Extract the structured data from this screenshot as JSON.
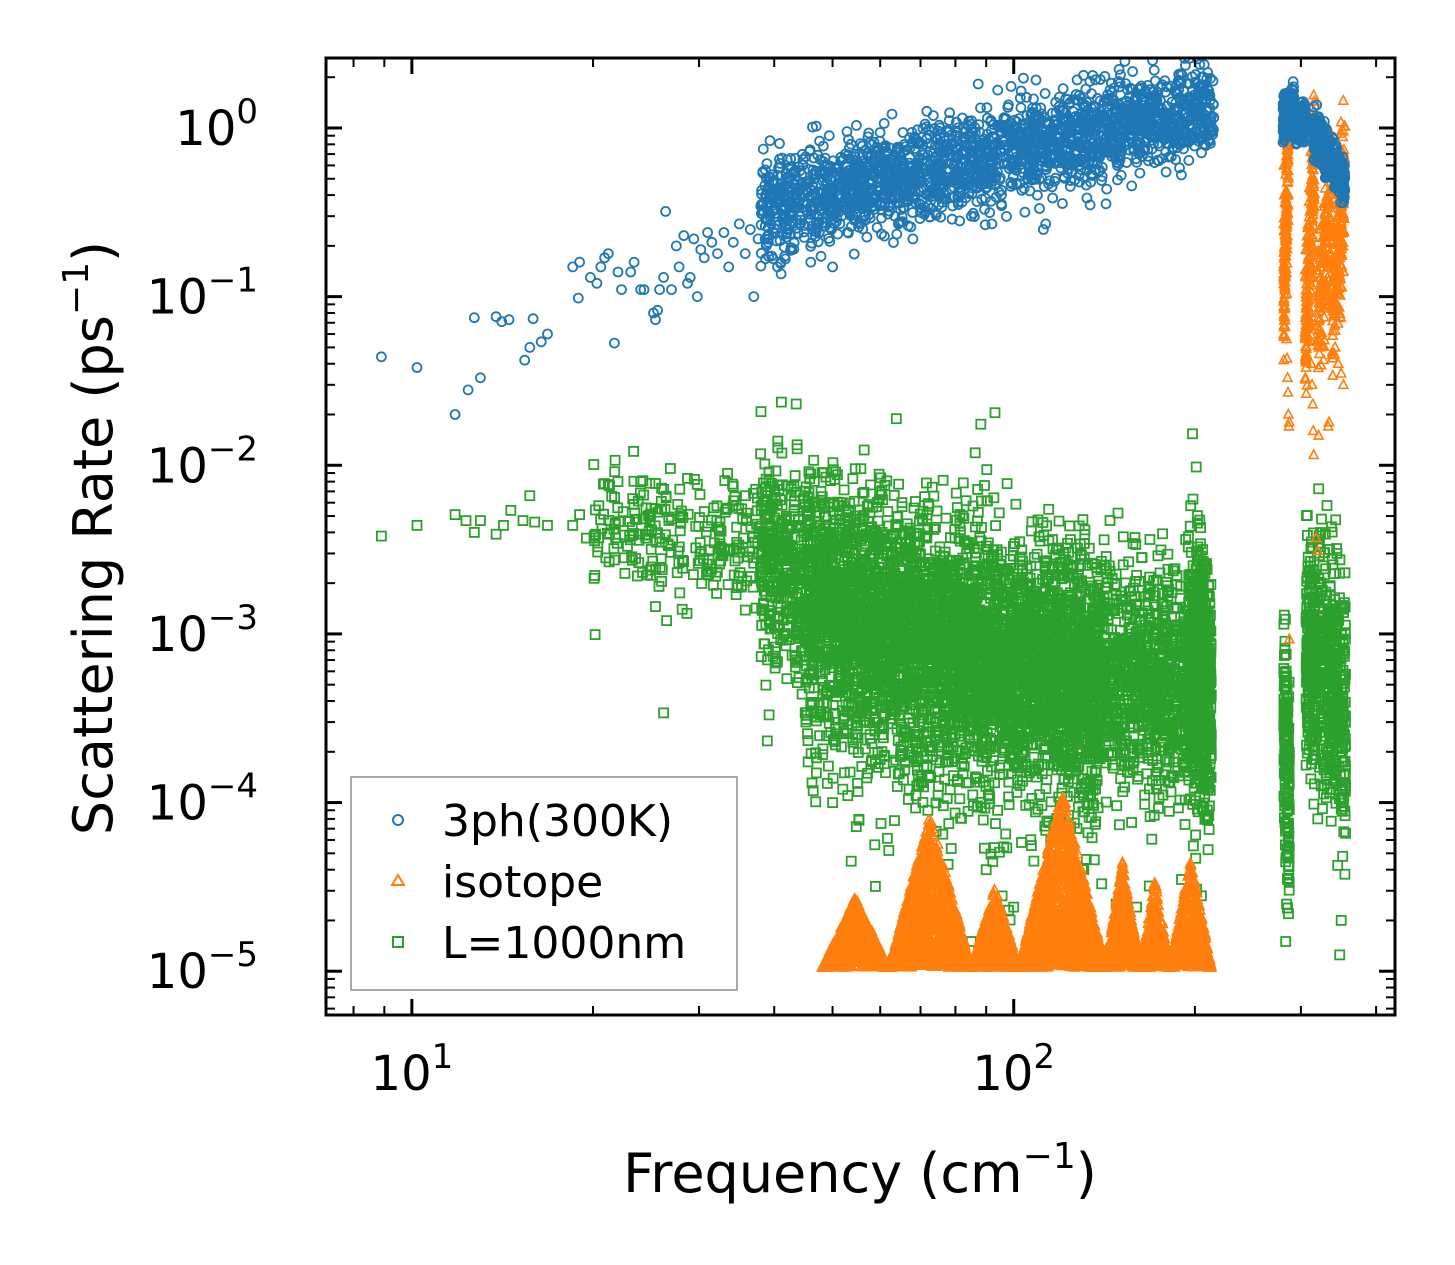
{
  "chart_data": {
    "type": "scatter",
    "title": "",
    "xlabel": "Frequency (cm",
    "xlabel_sup": "−1",
    "xlabel_end": ")",
    "ylabel": "Scattering Rate (ps",
    "ylabel_sup": "−1",
    "ylabel_end": ")",
    "xscale": "log",
    "yscale": "log",
    "xlim": [
      7.2,
      430
    ],
    "ylim": [
      5.5e-06,
      2.6
    ],
    "x_ticks": [
      {
        "value": 10,
        "base": "10",
        "exp": "1"
      },
      {
        "value": 100,
        "base": "10",
        "exp": "2"
      }
    ],
    "y_ticks": [
      {
        "value": 1,
        "base": "10",
        "exp": "0"
      },
      {
        "value": 0.1,
        "base": "10",
        "exp": "−1"
      },
      {
        "value": 0.01,
        "base": "10",
        "exp": "−2"
      },
      {
        "value": 0.001,
        "base": "10",
        "exp": "−3"
      },
      {
        "value": 0.0001,
        "base": "10",
        "exp": "−4"
      },
      {
        "value": 1e-05,
        "base": "10",
        "exp": "−5"
      }
    ],
    "legend_position": "lower-left",
    "series": [
      {
        "name": "3ph(300K)",
        "color": "#1f77b4",
        "marker": "circle",
        "points": [
          [
            8.9,
            0.044
          ],
          [
            10.2,
            0.038
          ],
          [
            11.8,
            0.02
          ],
          [
            12.4,
            0.028
          ],
          [
            12.7,
            0.075
          ],
          [
            13.0,
            0.033
          ],
          [
            13.8,
            0.076
          ],
          [
            14.1,
            0.071
          ],
          [
            14.5,
            0.073
          ],
          [
            15.4,
            0.042
          ],
          [
            15.7,
            0.05
          ],
          [
            15.9,
            0.074
          ],
          [
            16.4,
            0.054
          ],
          [
            16.8,
            0.06
          ],
          [
            18.5,
            0.15
          ],
          [
            18.9,
            0.098
          ],
          [
            19.0,
            0.16
          ],
          [
            19.8,
            0.13
          ],
          [
            20.3,
            0.12
          ],
          [
            20.6,
            0.15
          ],
          [
            20.9,
            0.17
          ],
          [
            21.2,
            0.18
          ],
          [
            21.7,
            0.053
          ],
          [
            22.0,
            0.14
          ],
          [
            22.3,
            0.11
          ],
          [
            23.1,
            0.14
          ],
          [
            23.4,
            0.16
          ],
          [
            24.0,
            0.11
          ],
          [
            24.3,
            0.11
          ],
          [
            25.2,
            0.08
          ],
          [
            25.4,
            0.073
          ],
          [
            25.6,
            0.083
          ],
          [
            25.8,
            0.11
          ],
          [
            26.2,
            0.13
          ],
          [
            26.4,
            0.32
          ],
          [
            27.0,
            0.11
          ],
          [
            27.5,
            0.2
          ],
          [
            27.8,
            0.15
          ],
          [
            28.3,
            0.23
          ],
          [
            28.7,
            0.12
          ],
          [
            29.0,
            0.13
          ],
          [
            29.4,
            0.22
          ],
          [
            29.8,
            0.1
          ],
          [
            30.2,
            0.19
          ],
          [
            30.6,
            0.17
          ],
          [
            31.0,
            0.24
          ],
          [
            31.5,
            0.21
          ],
          [
            32.2,
            0.18
          ],
          [
            33.0,
            0.24
          ],
          [
            33.6,
            0.15
          ],
          [
            34.2,
            0.21
          ],
          [
            35.0,
            0.27
          ],
          [
            35.8,
            0.18
          ],
          [
            36.5,
            0.25
          ],
          [
            37.0,
            0.1
          ],
          [
            37.6,
            0.22
          ],
          [
            38.2,
            0.31
          ],
          [
            38.8,
            0.2
          ],
          [
            39.2,
            0.48
          ],
          [
            40.0,
            0.49
          ],
          [
            40.5,
            0.15
          ],
          [
            41.0,
            0.16
          ],
          [
            46.0,
            0.16
          ],
          [
            50.0,
            0.15
          ],
          [
            55.0,
            0.62
          ],
          [
            58.0,
            0.7
          ],
          [
            62.0,
            0.62
          ],
          [
            68.0,
            0.22
          ],
          [
            75.0,
            0.35
          ],
          [
            85.0,
            0.3
          ],
          [
            92.0,
            0.27
          ],
          [
            103.0,
            0.9
          ],
          [
            112.0,
            0.25
          ],
          [
            113.0,
            0.27
          ],
          [
            118.0,
            0.8
          ],
          [
            150.0,
            0.72
          ],
          [
            165.0,
            0.75
          ],
          [
            300.0,
            1.42
          ],
          [
            304.0,
            1.1
          ],
          [
            317.0,
            0.93
          ],
          [
            325.0,
            0.78
          ],
          [
            340.0,
            0.6
          ],
          [
            345.0,
            0.5
          ]
        ],
        "bands": [
          {
            "x0": 38.0,
            "x1": 215.0,
            "y0": 0.34,
            "y1": 1.32,
            "jitter": 0.14,
            "n": 2200
          },
          {
            "x0": 280.0,
            "x1": 292.0,
            "y0": 1.12,
            "y1": 1.4,
            "jitter": 0.06,
            "n": 220
          },
          {
            "x0": 293.0,
            "x1": 305.0,
            "y0": 1.0,
            "y1": 1.1,
            "jitter": 0.05,
            "n": 150
          },
          {
            "x0": 315.0,
            "x1": 337.0,
            "y0": 0.95,
            "y1": 0.65,
            "jitter": 0.07,
            "n": 260
          },
          {
            "x0": 337.0,
            "x1": 355.0,
            "y0": 0.65,
            "y1": 0.45,
            "jitter": 0.06,
            "n": 200
          }
        ]
      },
      {
        "name": "isotope",
        "color": "#ff7f0e",
        "marker": "triangle",
        "points": [
          [
            280.5,
            0.85
          ],
          [
            281.0,
            0.6
          ],
          [
            281.5,
            0.4
          ],
          [
            282.0,
            0.25
          ],
          [
            282.5,
            0.2
          ],
          [
            283.0,
            0.14
          ],
          [
            284.0,
            0.056
          ],
          [
            284.5,
            0.043
          ],
          [
            285.0,
            0.033
          ],
          [
            285.5,
            0.027
          ],
          [
            286.0,
            0.02
          ],
          [
            286.5,
            0.017
          ],
          [
            287.0,
            0.018
          ],
          [
            310.0,
            0.08
          ],
          [
            311.0,
            0.055
          ],
          [
            312.0,
            0.04
          ],
          [
            313.0,
            0.03
          ],
          [
            314.0,
            0.023
          ],
          [
            314.5,
            0.016
          ],
          [
            315.0,
            0.0115
          ],
          [
            318.0,
            0.0037
          ],
          [
            320.0,
            0.0031
          ],
          [
            321.0,
            0.015
          ],
          [
            333.0,
            0.017
          ],
          [
            334.0,
            0.018
          ],
          [
            338.0,
            0.045
          ],
          [
            342.0,
            0.05
          ],
          [
            346.0,
            0.04
          ],
          [
            350.0,
            0.035
          ],
          [
            353.0,
            0.03
          ],
          [
            287.0,
            0.00093
          ]
        ],
        "bands": [
          {
            "x0": 281.0,
            "x1": 286.0,
            "y0": 0.08,
            "y1": 0.9,
            "jitter": 0.2,
            "n": 170
          },
          {
            "x0": 305.0,
            "x1": 316.0,
            "y0": 0.06,
            "y1": 0.55,
            "jitter": 0.22,
            "n": 200
          },
          {
            "x0": 320.0,
            "x1": 338.0,
            "y0": 0.07,
            "y1": 0.45,
            "jitter": 0.22,
            "n": 160
          },
          {
            "x0": 338.0,
            "x1": 355.0,
            "y0": 0.08,
            "y1": 0.55,
            "jitter": 0.22,
            "n": 200
          }
        ],
        "peaks": [
          {
            "x0": 48.0,
            "x1": 62.0,
            "peak": 2.8e-05,
            "n": 700
          },
          {
            "x0": 62.0,
            "x1": 85.0,
            "peak": 8.5e-05,
            "n": 1400
          },
          {
            "x0": 85.0,
            "x1": 102.0,
            "peak": 3.2e-05,
            "n": 700
          },
          {
            "x0": 102.0,
            "x1": 142.0,
            "peak": 0.00012,
            "n": 1800
          },
          {
            "x0": 142.0,
            "x1": 162.0,
            "peak": 4.5e-05,
            "n": 600
          },
          {
            "x0": 162.0,
            "x1": 182.0,
            "peak": 3.5e-05,
            "n": 450
          },
          {
            "x0": 182.0,
            "x1": 213.0,
            "peak": 4.8e-05,
            "n": 600
          }
        ]
      },
      {
        "name": "L=1000nm",
        "color": "#2ca02c",
        "marker": "square",
        "points": [
          [
            8.9,
            0.0038
          ],
          [
            10.2,
            0.0044
          ],
          [
            11.8,
            0.0051
          ],
          [
            12.3,
            0.0047
          ],
          [
            12.7,
            0.004
          ],
          [
            13.0,
            0.0047
          ],
          [
            13.8,
            0.0039
          ],
          [
            14.2,
            0.0044
          ],
          [
            14.6,
            0.0054
          ],
          [
            15.3,
            0.0047
          ],
          [
            15.7,
            0.0066
          ],
          [
            16.0,
            0.0046
          ],
          [
            16.8,
            0.0044
          ],
          [
            18.5,
            0.0044
          ],
          [
            19.0,
            0.0051
          ],
          [
            19.5,
            0.0037
          ],
          [
            20.2,
            0.0039
          ],
          [
            20.7,
            0.0042
          ],
          [
            21.3,
            0.0039
          ],
          [
            22.0,
            0.008
          ],
          [
            23.0,
            0.0038
          ],
          [
            24.2,
            0.0081
          ],
          [
            25.4,
            0.0078
          ],
          [
            26.0,
            0.0055
          ],
          [
            26.5,
            0.0012
          ],
          [
            26.2,
            0.00034
          ],
          [
            27.0,
            0.0048
          ],
          [
            28.2,
            0.0049
          ],
          [
            29.8,
            0.0077
          ],
          [
            30.5,
            0.0028
          ],
          [
            32.0,
            0.0022
          ],
          [
            33.5,
            0.0031
          ],
          [
            34.2,
            0.0075
          ],
          [
            36.0,
            0.0052
          ],
          [
            37.5,
            0.0064
          ],
          [
            39.0,
            0.0049
          ],
          [
            40.5,
            0.0076
          ],
          [
            42.0,
            0.0021
          ],
          [
            42.7,
            0.0072
          ],
          [
            44.0,
            0.00055
          ],
          [
            44.5,
            0.00044
          ],
          [
            45.5,
            0.0064
          ],
          [
            46.0,
            0.00035
          ],
          [
            47.0,
            0.00015
          ],
          [
            49.0,
            0.00013
          ],
          [
            50.0,
            0.0001
          ],
          [
            52.0,
            0.00012
          ],
          [
            53.0,
            0.00011
          ],
          [
            55.0,
            0.00013
          ],
          [
            57.0,
            0.00014
          ],
          [
            60.0,
            0.00018
          ],
          [
            62.0,
            5.2e-05
          ],
          [
            67.0,
            0.00012
          ],
          [
            72.0,
            9e-05
          ],
          [
            78.0,
            7.5e-05
          ],
          [
            82.0,
            1.3e-05
          ],
          [
            85.0,
            1.5e-05
          ],
          [
            90.0,
            4e-05
          ],
          [
            94.0,
            9e-05
          ],
          [
            98.0,
            2.3e-05
          ],
          [
            100.0,
            2.4e-05
          ],
          [
            103.0,
            5.8e-05
          ],
          [
            108.0,
            4.5e-05
          ],
          [
            118.0,
            1.1e-05
          ],
          [
            120.0,
            1.2e-05
          ],
          [
            124.0,
            2.6e-05
          ],
          [
            132.0,
            4.6e-05
          ],
          [
            140.0,
            3.3e-05
          ],
          [
            148.0,
            2.5e-05
          ],
          [
            152.0,
            1.6e-05
          ],
          [
            160.0,
            2.4e-05
          ],
          [
            168.0,
            3.2e-05
          ],
          [
            175.0,
            1.1e-05
          ],
          [
            190.0,
            3.5e-05
          ],
          [
            205.0,
            2.8e-05
          ],
          [
            283.0,
            1.5e-05
          ],
          [
            284.0,
            2.5e-05
          ],
          [
            285.0,
            3.5e-05
          ],
          [
            320.0,
            8e-05
          ],
          [
            348.0,
            1.25e-05
          ],
          [
            350.0,
            2e-05
          ],
          [
            352.0,
            4.8e-05
          ],
          [
            331.0,
            0.00015
          ],
          [
            122.0,
            0.00068
          ],
          [
            175.0,
            0.0023
          ],
          [
            148.0,
            0.0017
          ]
        ],
        "bands": [
          {
            "x0": 20.0,
            "x1": 40.0,
            "y0": 0.0042,
            "y1": 0.0035,
            "jitter": 0.18,
            "n": 260
          },
          {
            "x0": 38.0,
            "x1": 80.0,
            "y0": 0.0028,
            "y1": 0.00085,
            "jitter": 0.32,
            "n": 1400
          },
          {
            "x0": 45.0,
            "x1": 140.0,
            "y0": 0.0011,
            "y1": 0.00035,
            "jitter": 0.42,
            "n": 2200
          },
          {
            "x0": 80.0,
            "x1": 213.0,
            "y0": 0.0009,
            "y1": 0.00045,
            "jitter": 0.32,
            "n": 2600
          },
          {
            "x0": 195.0,
            "x1": 213.0,
            "y0": 0.00075,
            "y1": 0.0004,
            "jitter": 0.38,
            "n": 500
          },
          {
            "x0": 281.0,
            "x1": 287.0,
            "y0": 0.0003,
            "y1": 0.00012,
            "jitter": 0.35,
            "n": 180
          },
          {
            "x0": 306.0,
            "x1": 318.0,
            "y0": 0.0008,
            "y1": 0.0006,
            "jitter": 0.3,
            "n": 240
          },
          {
            "x0": 320.0,
            "x1": 356.0,
            "y0": 0.0008,
            "y1": 0.00035,
            "jitter": 0.35,
            "n": 420
          }
        ]
      }
    ]
  }
}
